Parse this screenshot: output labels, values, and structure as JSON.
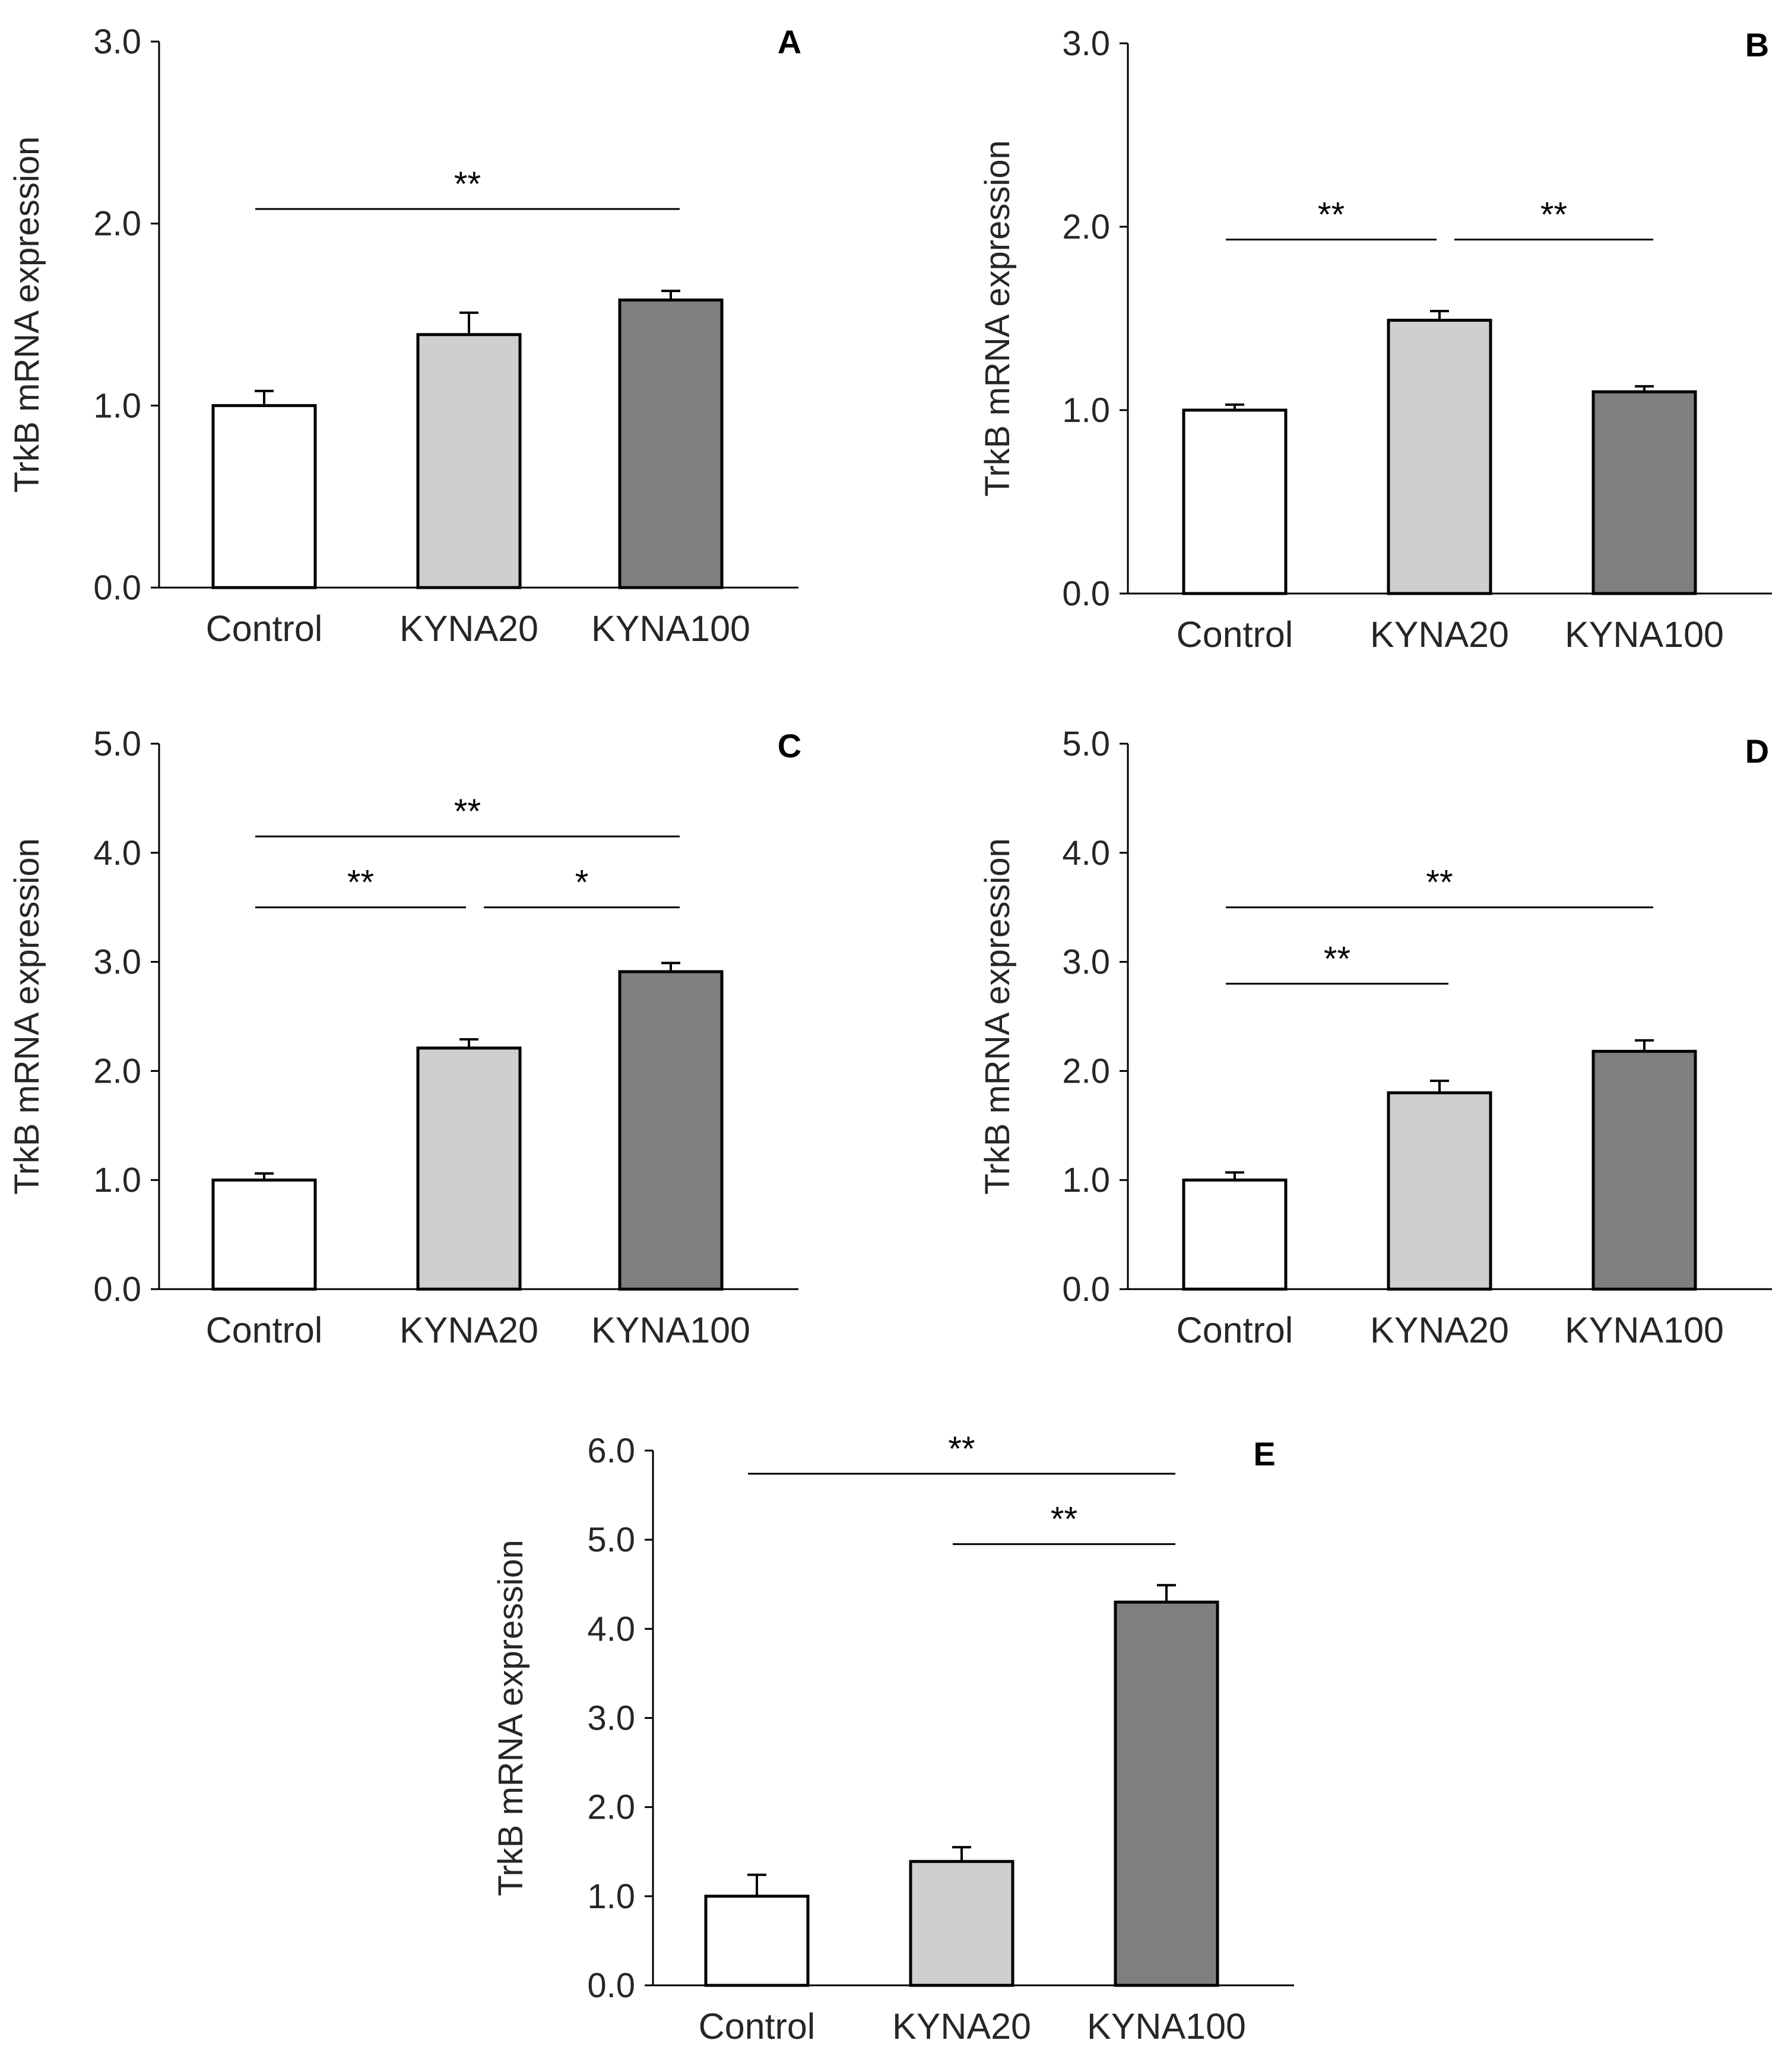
{
  "colors": {
    "control": "#ffffff",
    "kyna20": "#d0cfcf",
    "kyna100": "#7f7f7f",
    "outline": "#000000",
    "text": "#262626"
  },
  "chart_data": [
    {
      "panel": "A",
      "type": "bar",
      "categories": [
        "Control",
        "KYNA20",
        "KYNA100"
      ],
      "values": [
        1.0,
        1.39,
        1.58
      ],
      "errors": [
        0.08,
        0.12,
        0.05
      ],
      "ylabel": "TrkB mRNA expression",
      "ylim": [
        0,
        3
      ],
      "yticks": [
        "0.0",
        "1.0",
        "2.0",
        "3.0"
      ],
      "significance": [
        {
          "from": 0,
          "to": 2,
          "label": "**",
          "y": 2.08
        }
      ]
    },
    {
      "panel": "B",
      "type": "bar",
      "categories": [
        "Control",
        "KYNA20",
        "KYNA100"
      ],
      "values": [
        1.0,
        1.49,
        1.1
      ],
      "errors": [
        0.03,
        0.05,
        0.03
      ],
      "ylabel": "TrkB mRNA expression",
      "ylim": [
        0,
        3
      ],
      "yticks": [
        "0.0",
        "1.0",
        "2.0",
        "3.0"
      ],
      "significance": [
        {
          "from": 0,
          "to": 1,
          "label": "**",
          "y": 1.93
        },
        {
          "from": 1,
          "to": 2,
          "label": "**",
          "y": 1.93
        }
      ]
    },
    {
      "panel": "C",
      "type": "bar",
      "categories": [
        "Control",
        "KYNA20",
        "KYNA100"
      ],
      "values": [
        1.0,
        2.21,
        2.91
      ],
      "errors": [
        0.06,
        0.08,
        0.08
      ],
      "ylabel": "TrkB mRNA expression",
      "ylim": [
        0,
        5
      ],
      "yticks": [
        "0.0",
        "1.0",
        "2.0",
        "3.0",
        "4.0",
        "5.0"
      ],
      "significance": [
        {
          "from": 0,
          "to": 2,
          "label": "**",
          "y": 4.15
        },
        {
          "from": 0,
          "to": 1,
          "label": "**",
          "y": 3.5
        },
        {
          "from": 1,
          "to": 2,
          "label": "*",
          "y": 3.5
        }
      ]
    },
    {
      "panel": "D",
      "type": "bar",
      "categories": [
        "Control",
        "KYNA20",
        "KYNA100"
      ],
      "values": [
        1.0,
        1.8,
        2.18
      ],
      "errors": [
        0.07,
        0.11,
        0.1
      ],
      "ylabel": "TrkB mRNA expression",
      "ylim": [
        0,
        5
      ],
      "yticks": [
        "0.0",
        "1.0",
        "2.0",
        "3.0",
        "4.0",
        "5.0"
      ],
      "significance": [
        {
          "from": 0,
          "to": 2,
          "label": "**",
          "y": 3.5
        },
        {
          "from": 0,
          "to": 1,
          "label": "**",
          "y": 2.8
        }
      ]
    },
    {
      "panel": "E",
      "type": "bar",
      "categories": [
        "Control",
        "KYNA20",
        "KYNA100"
      ],
      "values": [
        1.0,
        1.39,
        4.3
      ],
      "errors": [
        0.24,
        0.16,
        0.19
      ],
      "ylabel": "TrkB mRNA expression",
      "ylim": [
        0,
        6
      ],
      "yticks": [
        "0.0",
        "1.0",
        "2.0",
        "3.0",
        "4.0",
        "5.0",
        "6.0"
      ],
      "significance": [
        {
          "from": 0,
          "to": 2,
          "label": "**",
          "y": 5.74
        },
        {
          "from": 1,
          "to": 2,
          "label": "**",
          "y": 4.95
        }
      ]
    }
  ]
}
